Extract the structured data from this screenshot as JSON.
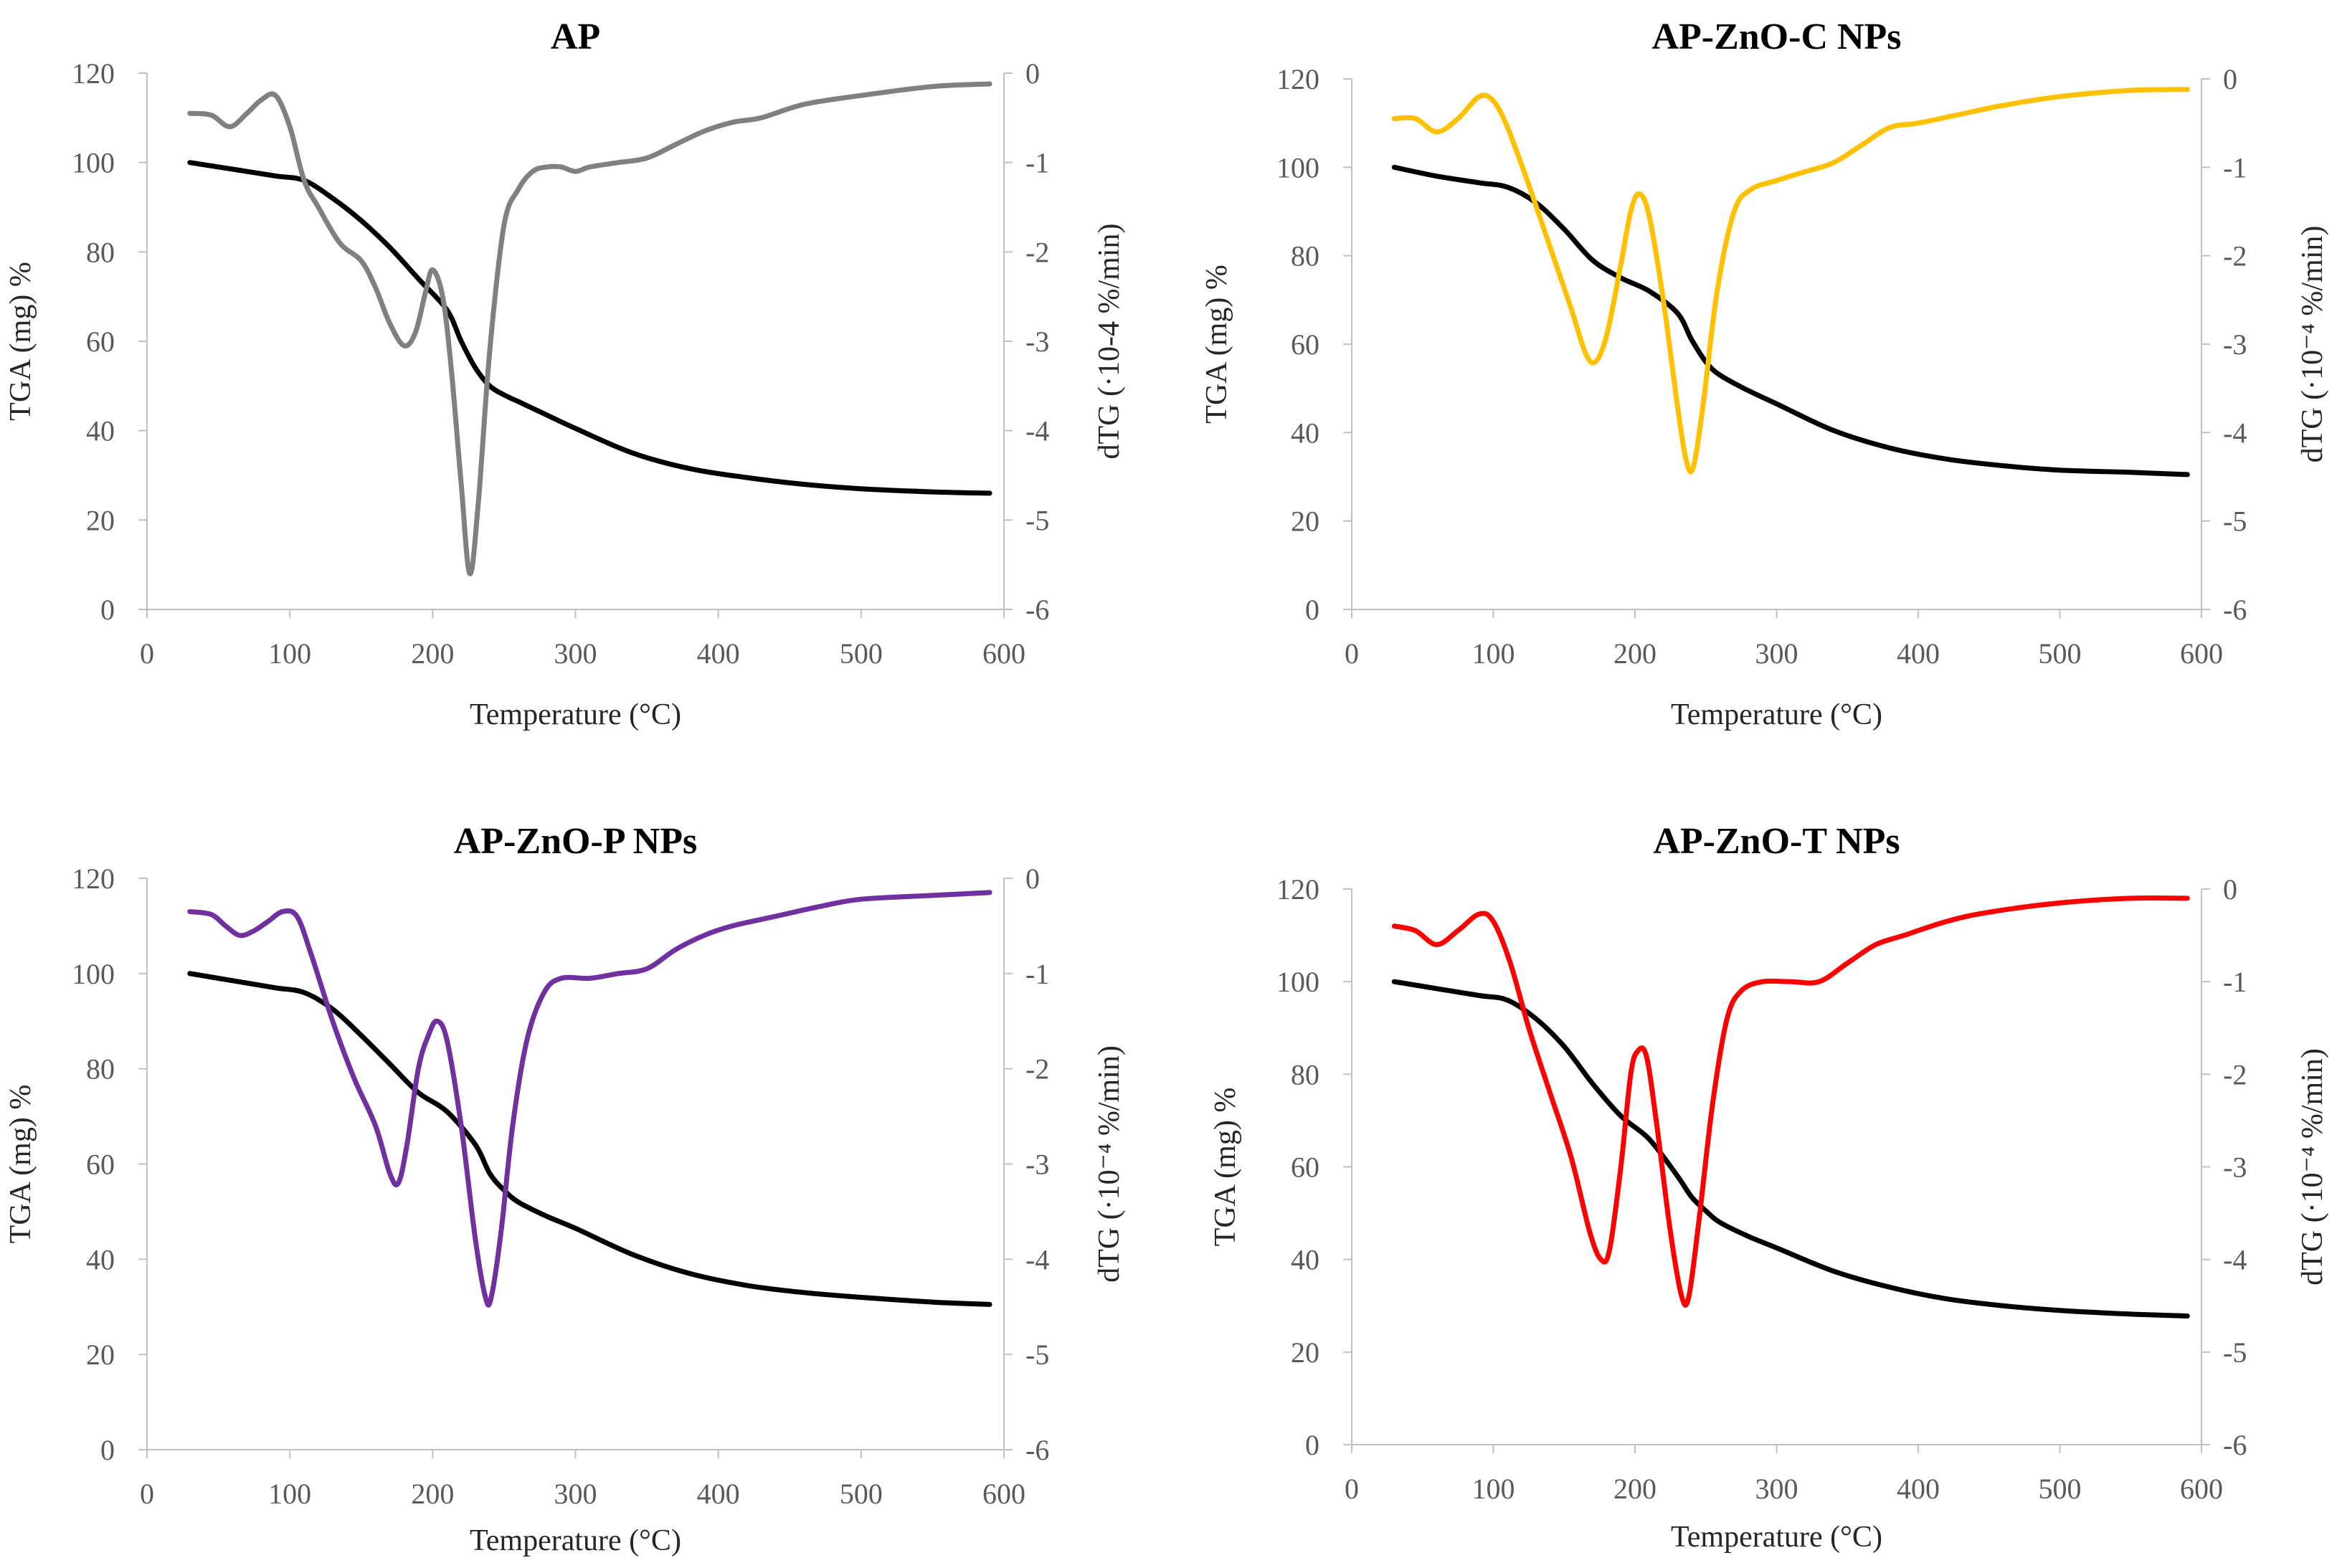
{
  "chart_data": [
    {
      "type": "line",
      "title": "AP",
      "xlabel": "Temperature  (°C)",
      "ylabel": "TGA (mg) %",
      "y2label": "dTG (·10-4 %/min)",
      "xlim": [
        0,
        600
      ],
      "xticks": [
        "0",
        "100",
        "200",
        "300",
        "400",
        "500",
        "600"
      ],
      "ylim": [
        0,
        120
      ],
      "yticks": [
        "0",
        "20",
        "40",
        "60",
        "80",
        "100",
        "120"
      ],
      "y2lim": [
        -6,
        0
      ],
      "y2ticks": [
        "-6",
        "-5",
        "-4",
        "-3",
        "-2",
        "-1",
        "0"
      ],
      "label_color": "#7f7f7f",
      "series": [
        {
          "name": "TGA",
          "axis": "left",
          "color": "#000000",
          "x": [
            30,
            60,
            90,
            110,
            130,
            150,
            170,
            190,
            210,
            220,
            230,
            240,
            250,
            260,
            280,
            300,
            340,
            380,
            420,
            460,
            500,
            550,
            590
          ],
          "y": [
            100,
            98.5,
            97,
            96,
            92,
            87,
            81,
            74,
            67,
            60,
            54,
            50,
            48,
            46.5,
            43.5,
            40.5,
            35,
            31.5,
            29.5,
            28,
            27,
            26.3,
            26
          ]
        },
        {
          "name": "dTG",
          "axis": "right",
          "color": "#808080",
          "x": [
            30,
            45,
            58,
            70,
            80,
            90,
            100,
            110,
            120,
            135,
            150,
            160,
            170,
            180,
            188,
            195,
            200,
            207,
            213,
            220,
            226,
            232,
            240,
            250,
            260,
            270,
            280,
            290,
            300,
            310,
            330,
            350,
            370,
            390,
            410,
            430,
            460,
            500,
            550,
            590
          ],
          "y": [
            -0.45,
            -0.47,
            -0.6,
            -0.45,
            -0.3,
            -0.25,
            -0.6,
            -1.2,
            -1.5,
            -1.9,
            -2.1,
            -2.4,
            -2.8,
            -3.05,
            -2.9,
            -2.45,
            -2.2,
            -2.5,
            -3.3,
            -4.6,
            -5.6,
            -4.8,
            -3.1,
            -1.7,
            -1.3,
            -1.1,
            -1.05,
            -1.05,
            -1.1,
            -1.05,
            -1.0,
            -0.95,
            -0.8,
            -0.65,
            -0.55,
            -0.5,
            -0.35,
            -0.25,
            -0.15,
            -0.12
          ]
        }
      ]
    },
    {
      "type": "line",
      "title": "AP-ZnO-C NPs",
      "xlabel": "Temperature  (°C)",
      "ylabel": "TGA (mg) %",
      "y2label": "dTG (·10⁻⁴ %/min)",
      "xlim": [
        0,
        600
      ],
      "xticks": [
        "0",
        "100",
        "200",
        "300",
        "400",
        "500",
        "600"
      ],
      "ylim": [
        0,
        120
      ],
      "yticks": [
        "0",
        "20",
        "40",
        "60",
        "80",
        "100",
        "120"
      ],
      "y2lim": [
        -6,
        0
      ],
      "y2ticks": [
        "-6",
        "-5",
        "-4",
        "-3",
        "-2",
        "-1",
        "0"
      ],
      "label_color": "#262626",
      "series": [
        {
          "name": "TGA",
          "axis": "left",
          "color": "#000000",
          "x": [
            30,
            60,
            90,
            110,
            130,
            150,
            170,
            190,
            210,
            230,
            240,
            250,
            260,
            280,
            300,
            340,
            380,
            420,
            460,
            500,
            550,
            590
          ],
          "y": [
            100,
            98,
            96.5,
            95.5,
            92,
            86,
            79,
            75,
            72,
            67,
            61,
            56,
            53,
            49.5,
            46.5,
            40.5,
            36.5,
            34,
            32.5,
            31.5,
            31,
            30.5
          ]
        },
        {
          "name": "dTG",
          "axis": "right",
          "color": "#ffc000",
          "x": [
            30,
            45,
            60,
            75,
            90,
            100,
            110,
            125,
            140,
            155,
            165,
            172,
            180,
            190,
            197,
            203,
            210,
            220,
            230,
            236,
            241,
            248,
            258,
            270,
            282,
            300,
            320,
            340,
            360,
            380,
            400,
            430,
            460,
            500,
            550,
            590
          ],
          "y": [
            -0.45,
            -0.45,
            -0.6,
            -0.45,
            -0.2,
            -0.25,
            -0.55,
            -1.2,
            -1.9,
            -2.6,
            -3.1,
            -3.2,
            -2.9,
            -2.1,
            -1.5,
            -1.3,
            -1.55,
            -2.5,
            -3.7,
            -4.3,
            -4.4,
            -3.7,
            -2.4,
            -1.5,
            -1.25,
            -1.15,
            -1.05,
            -0.95,
            -0.75,
            -0.55,
            -0.5,
            -0.4,
            -0.3,
            -0.2,
            -0.13,
            -0.12
          ]
        }
      ]
    },
    {
      "type": "line",
      "title": "AP-ZnO-P NPs",
      "xlabel": "Temperature  (°C)",
      "ylabel": "TGA (mg) %",
      "y2label": "dTG (·10⁻⁴ %/min)",
      "xlim": [
        0,
        600
      ],
      "xticks": [
        "0",
        "100",
        "200",
        "300",
        "400",
        "500",
        "600"
      ],
      "ylim": [
        0,
        120
      ],
      "yticks": [
        "0",
        "20",
        "40",
        "60",
        "80",
        "100",
        "120"
      ],
      "y2lim": [
        -6,
        0
      ],
      "y2ticks": [
        "-6",
        "-5",
        "-4",
        "-3",
        "-2",
        "-1",
        "0"
      ],
      "label_color": "#262626",
      "series": [
        {
          "name": "TGA",
          "axis": "left",
          "color": "#000000",
          "x": [
            30,
            60,
            90,
            110,
            130,
            150,
            170,
            190,
            210,
            230,
            240,
            250,
            260,
            280,
            300,
            340,
            380,
            420,
            460,
            500,
            550,
            590
          ],
          "y": [
            100,
            98.5,
            97,
            96,
            92.5,
            87,
            81,
            75,
            71,
            64,
            58,
            54.5,
            52,
            49,
            46.5,
            41,
            37,
            34.5,
            33,
            32,
            31,
            30.5
          ]
        },
        {
          "name": "dTG",
          "axis": "right",
          "color": "#7030a0",
          "x": [
            30,
            45,
            55,
            65,
            75,
            85,
            95,
            105,
            115,
            130,
            145,
            160,
            170,
            176,
            182,
            190,
            197,
            203,
            210,
            220,
            230,
            237,
            241,
            248,
            256,
            266,
            278,
            290,
            310,
            330,
            350,
            370,
            390,
            410,
            440,
            470,
            500,
            550,
            590
          ],
          "y": [
            -0.35,
            -0.38,
            -0.5,
            -0.6,
            -0.55,
            -0.45,
            -0.35,
            -0.4,
            -0.8,
            -1.5,
            -2.1,
            -2.6,
            -3.1,
            -3.2,
            -2.8,
            -2.0,
            -1.65,
            -1.5,
            -1.7,
            -2.6,
            -3.8,
            -4.4,
            -4.4,
            -3.7,
            -2.6,
            -1.7,
            -1.2,
            -1.05,
            -1.05,
            -1.0,
            -0.95,
            -0.75,
            -0.6,
            -0.5,
            -0.4,
            -0.3,
            -0.22,
            -0.18,
            -0.15
          ]
        }
      ]
    },
    {
      "type": "line",
      "title": "AP-ZnO-T NPs",
      "xlabel": "Temperature  (°C)",
      "ylabel": "TGA (mg) %",
      "y2label": "dTG (·10⁻⁴ %/min)",
      "xlim": [
        0,
        600
      ],
      "xticks": [
        "0",
        "100",
        "200",
        "300",
        "400",
        "500",
        "600"
      ],
      "ylim": [
        0,
        120
      ],
      "yticks": [
        "0",
        "20",
        "40",
        "60",
        "80",
        "100",
        "120"
      ],
      "y2lim": [
        -6,
        0
      ],
      "y2ticks": [
        "-6",
        "-5",
        "-4",
        "-3",
        "-2",
        "-1",
        "0"
      ],
      "label_color": "#262626",
      "series": [
        {
          "name": "TGA",
          "axis": "left",
          "color": "#000000",
          "x": [
            30,
            60,
            90,
            110,
            130,
            150,
            170,
            190,
            210,
            230,
            240,
            250,
            260,
            280,
            300,
            340,
            380,
            420,
            460,
            500,
            550,
            590
          ],
          "y": [
            100,
            98.5,
            97,
            96,
            92,
            86,
            78,
            71,
            66,
            58,
            53.5,
            50.5,
            48,
            45,
            42.5,
            37.5,
            34,
            31.5,
            30,
            29,
            28.2,
            27.8
          ]
        },
        {
          "name": "dTG",
          "axis": "right",
          "color": "#ff0000",
          "x": [
            30,
            45,
            60,
            75,
            90,
            100,
            112,
            125,
            140,
            155,
            168,
            176,
            182,
            190,
            197,
            202,
            208,
            215,
            225,
            233,
            238,
            245,
            255,
            265,
            275,
            290,
            310,
            330,
            350,
            370,
            390,
            420,
            450,
            500,
            550,
            590
          ],
          "y": [
            -0.4,
            -0.45,
            -0.6,
            -0.45,
            -0.27,
            -0.35,
            -0.8,
            -1.5,
            -2.2,
            -2.9,
            -3.7,
            -4.0,
            -3.9,
            -3.0,
            -2.0,
            -1.75,
            -1.8,
            -2.5,
            -3.7,
            -4.4,
            -4.4,
            -3.6,
            -2.3,
            -1.4,
            -1.1,
            -1.0,
            -1.0,
            -1.0,
            -0.8,
            -0.6,
            -0.5,
            -0.35,
            -0.25,
            -0.15,
            -0.1,
            -0.1
          ]
        }
      ]
    }
  ]
}
